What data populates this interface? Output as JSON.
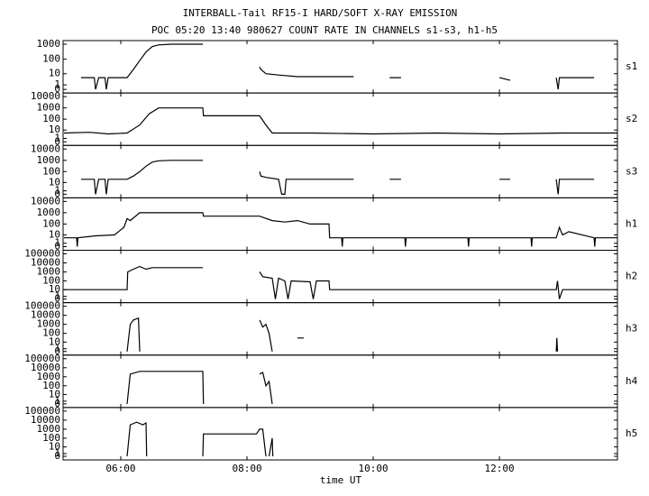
{
  "chart_data": {
    "type": "line",
    "yscale": "log1p",
    "color": "#000000",
    "title": "INTERBALL-Tail RF15-I HARD/SOFT X-RAY EMISSION",
    "subtitle": "POC 05:20 13:40 980627  COUNT RATE IN CHANNELS s1-s3, h1-h5",
    "xlabel": "time UT",
    "xlim": [
      5.086,
      13.87
    ],
    "xticks": [
      {
        "value": 6,
        "label": "06:00"
      },
      {
        "value": 8,
        "label": "08:00"
      },
      {
        "value": 10,
        "label": "10:00"
      },
      {
        "value": 12,
        "label": "12:00"
      }
    ],
    "panels": [
      {
        "name": "s1",
        "ylim": [
          0,
          1000
        ],
        "yticks": [
          0,
          1,
          10,
          100,
          1000
        ],
        "x": [
          5.37,
          5.58,
          5.6,
          5.65,
          5.75,
          5.77,
          5.8,
          6.1,
          6.2,
          6.3,
          6.4,
          6.5,
          6.6,
          6.8,
          7.3,
          7.31,
          8.2,
          8.22,
          8.3,
          8.5,
          8.8,
          9.2,
          9.69,
          9.7,
          10.26,
          10.44,
          10.45,
          12.0,
          12.17,
          12.18,
          12.9,
          12.93,
          12.95,
          13.5
        ],
        "values": [
          5,
          5,
          0,
          5,
          5,
          0,
          5,
          5,
          20,
          80,
          300,
          700,
          900,
          1000,
          1000,
          null,
          30,
          20,
          10,
          8,
          6,
          6,
          6,
          null,
          5,
          5,
          null,
          5,
          3,
          null,
          5,
          0,
          5,
          5
        ]
      },
      {
        "name": "s2",
        "ylim": [
          0,
          10000
        ],
        "yticks": [
          0,
          1,
          10,
          100,
          1000,
          10000
        ],
        "x": [
          5.1,
          5.5,
          5.8,
          6.1,
          6.3,
          6.45,
          6.6,
          7.3,
          7.31,
          8.2,
          8.3,
          8.4,
          9,
          10,
          11,
          12,
          13,
          13.87
        ],
        "values": [
          5,
          6,
          4,
          5,
          30,
          300,
          1000,
          1000,
          200,
          200,
          30,
          5,
          5,
          4,
          5,
          4,
          5,
          5
        ]
      },
      {
        "name": "s3",
        "ylim": [
          0,
          10000
        ],
        "yticks": [
          0,
          1,
          10,
          100,
          1000,
          10000
        ],
        "x": [
          5.37,
          5.58,
          5.6,
          5.65,
          5.75,
          5.77,
          5.8,
          6.1,
          6.2,
          6.3,
          6.4,
          6.5,
          6.6,
          6.8,
          7.3,
          7.31,
          8.2,
          8.22,
          8.3,
          8.5,
          8.55,
          8.6,
          8.62,
          9.2,
          9.69,
          9.7,
          10.26,
          10.44,
          10.45,
          12.0,
          12.17,
          12.18,
          12.9,
          12.93,
          12.95,
          13.5
        ],
        "values": [
          20,
          20,
          0,
          20,
          20,
          0,
          20,
          20,
          40,
          100,
          300,
          700,
          900,
          1000,
          1000,
          null,
          100,
          40,
          30,
          20,
          0,
          0,
          20,
          20,
          20,
          null,
          20,
          20,
          null,
          20,
          20,
          null,
          20,
          0,
          20,
          20
        ]
      },
      {
        "name": "h1",
        "ylim": [
          0,
          10000
        ],
        "yticks": [
          0,
          1,
          10,
          100,
          1000,
          10000
        ],
        "x": [
          5.1,
          5.3,
          5.31,
          5.32,
          5.6,
          5.9,
          6.0,
          6.05,
          6.1,
          6.15,
          6.3,
          6.5,
          7.3,
          7.31,
          8.2,
          8.4,
          8.6,
          8.8,
          9.0,
          9.3,
          9.31,
          9.5,
          9.51,
          9.52,
          10.5,
          10.51,
          10.52,
          11.5,
          11.51,
          11.52,
          12.5,
          12.51,
          12.52,
          12.9,
          12.95,
          13.0,
          13.1,
          13.5,
          13.51,
          13.52,
          13.87
        ],
        "values": [
          5,
          5,
          0,
          5,
          8,
          10,
          30,
          50,
          300,
          200,
          1000,
          1000,
          1000,
          500,
          500,
          200,
          150,
          200,
          100,
          100,
          5,
          5,
          0,
          5,
          5,
          0,
          5,
          5,
          0,
          5,
          5,
          0,
          5,
          5,
          50,
          10,
          20,
          5,
          0,
          5,
          5
        ]
      },
      {
        "name": "h2",
        "ylim": [
          0,
          100000
        ],
        "yticks": [
          0,
          1,
          10,
          100,
          1000,
          10000,
          100000
        ],
        "x": [
          5.1,
          6.1,
          6.11,
          6.2,
          6.3,
          6.4,
          6.5,
          7.3,
          7.31,
          8.2,
          8.25,
          8.4,
          8.45,
          8.5,
          8.6,
          8.65,
          8.7,
          9.0,
          9.05,
          9.1,
          9.3,
          9.31,
          12.9,
          12.92,
          12.95,
          13.0,
          13.1,
          13.87
        ],
        "values": [
          10,
          10,
          1000,
          2000,
          4000,
          2000,
          3000,
          3000,
          null,
          1000,
          300,
          200,
          0,
          200,
          100,
          0,
          100,
          80,
          0,
          100,
          100,
          10,
          10,
          100,
          0,
          10,
          10,
          10
        ]
      },
      {
        "name": "h3",
        "ylim": [
          0,
          100000
        ],
        "yticks": [
          0,
          1,
          10,
          100,
          1000,
          10000,
          100000
        ],
        "x": [
          6.1,
          6.15,
          6.2,
          6.28,
          6.3,
          6.31,
          8.2,
          8.25,
          8.3,
          8.35,
          8.4,
          8.41,
          8.8,
          8.85,
          8.9,
          8.91,
          12.9,
          12.91,
          12.92
        ],
        "values": [
          0,
          1000,
          3000,
          5000,
          0,
          null,
          3000,
          500,
          1000,
          100,
          0,
          null,
          30,
          30,
          30,
          null,
          0,
          30,
          0
        ]
      },
      {
        "name": "h4",
        "ylim": [
          0,
          100000
        ],
        "yticks": [
          0,
          1,
          10,
          100,
          1000,
          10000,
          100000
        ],
        "x": [
          6.1,
          6.15,
          6.3,
          7.3,
          7.31,
          7.32,
          8.2,
          8.25,
          8.3,
          8.35,
          8.4
        ],
        "values": [
          0,
          2000,
          4000,
          4000,
          0,
          null,
          2000,
          3000,
          100,
          300,
          0
        ]
      },
      {
        "name": "h5",
        "ylim": [
          0,
          100000
        ],
        "yticks": [
          0,
          1,
          10,
          100,
          1000,
          10000,
          100000
        ],
        "x": [
          6.1,
          6.15,
          6.25,
          6.35,
          6.4,
          6.41,
          6.42,
          7.3,
          7.31,
          8.15,
          8.2,
          8.25,
          8.3,
          8.31,
          8.35,
          8.4,
          8.41
        ],
        "values": [
          0,
          3000,
          6000,
          3000,
          5000,
          0,
          null,
          0,
          300,
          300,
          1000,
          1000,
          0,
          null,
          0,
          100,
          0
        ]
      }
    ]
  }
}
